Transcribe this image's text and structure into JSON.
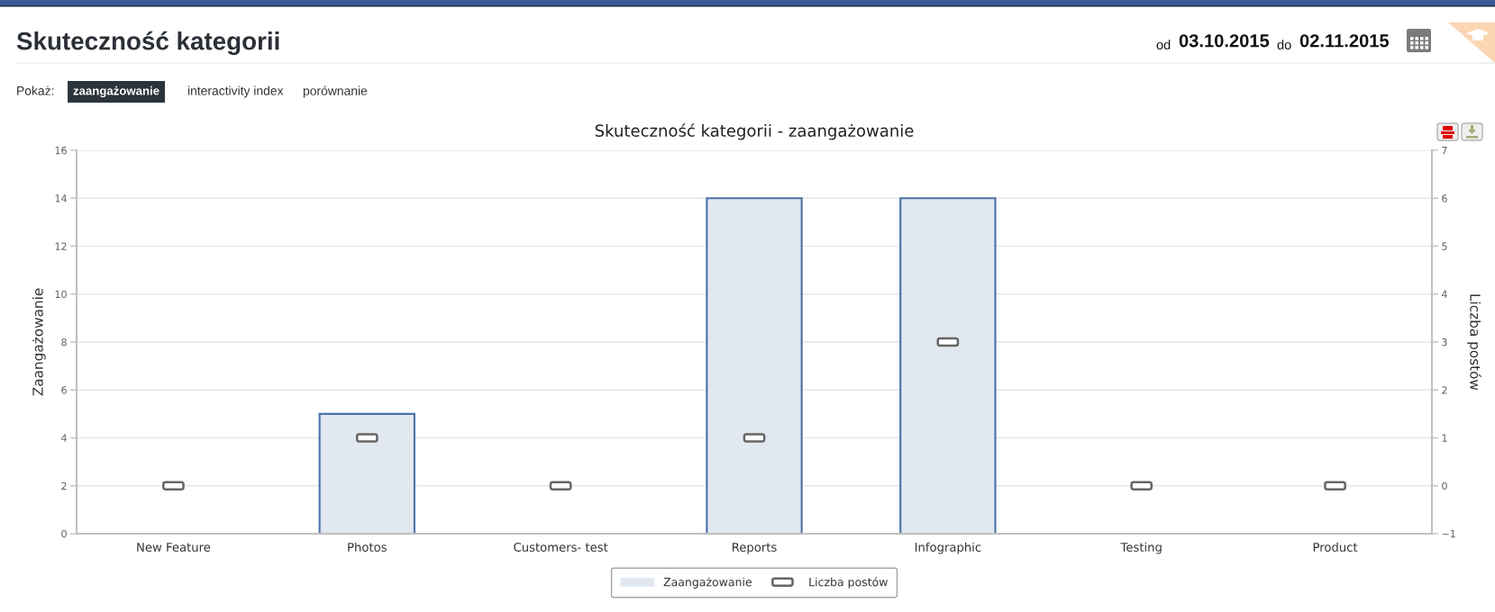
{
  "chart_data": {
    "type": "bar",
    "title": "Skuteczność kategorii - zaangażowanie",
    "ylabel": "Zaangażowanie",
    "y2label": "Liczba postów",
    "categories": [
      "New Feature",
      "Photos",
      "Customers- test",
      "Reports",
      "Infographic",
      "Testing",
      "Product"
    ],
    "series": [
      {
        "name": "Zaangażowanie",
        "color": "#e1e8f0",
        "values": [
          0,
          5,
          0,
          14,
          14,
          0,
          0
        ]
      },
      {
        "name": "Liczba postów",
        "type": "scatter",
        "axis": "y2",
        "color": "#666666",
        "values": [
          0,
          1,
          0,
          1,
          3,
          0,
          0
        ]
      }
    ],
    "ylim": [
      0,
      16
    ],
    "yticks": [
      0,
      2,
      4,
      6,
      8,
      10,
      12,
      14,
      16
    ],
    "y2lim": [
      -1,
      7
    ],
    "y2ticks": [
      {
        "value": -1,
        "label": "−1"
      },
      0,
      1,
      2,
      3,
      4,
      5,
      6,
      7
    ],
    "grid": "y",
    "legend": "bottom",
    "annotations": [
      "Skuteczność kategorii",
      "Pokaż:",
      "zaangażowanie",
      "interactivity index",
      "porównanie",
      "od",
      "03.10.2015",
      "do",
      "02.11.2015"
    ]
  }
}
